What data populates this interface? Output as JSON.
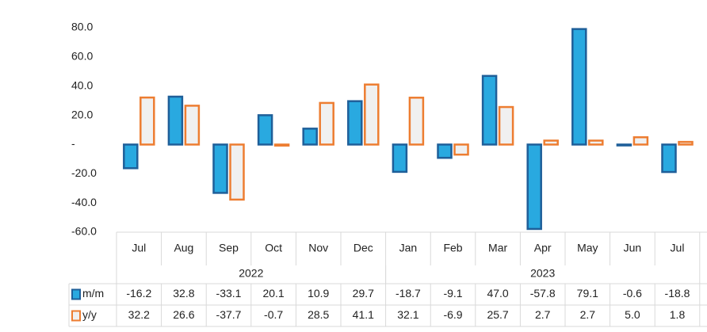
{
  "chart_data": {
    "type": "bar",
    "categories": [
      "Jul",
      "Aug",
      "Sep",
      "Oct",
      "Nov",
      "Dec",
      "Jan",
      "Feb",
      "Mar",
      "Apr",
      "May",
      "Jun",
      "Jul"
    ],
    "groups": [
      {
        "label": "2022",
        "first": 0,
        "last": 5
      },
      {
        "label": "2023",
        "first": 6,
        "last": 12
      }
    ],
    "series": [
      {
        "name": "m/m",
        "color": "#29a9e0",
        "edge": "#1f5f99",
        "values": [
          -16.2,
          32.8,
          -33.1,
          20.1,
          10.9,
          29.7,
          -18.7,
          -9.1,
          47.0,
          -57.8,
          79.1,
          -0.6,
          -18.8
        ],
        "value_labels": [
          "-16.2",
          "32.8",
          "-33.1",
          "20.1",
          "10.9",
          "29.7",
          "-18.7",
          "-9.1",
          "47.0",
          "-57.8",
          "79.1",
          "-0.6",
          "-18.8"
        ]
      },
      {
        "name": "y/y",
        "color": "#f0f0f0",
        "edge": "#ed7d31",
        "values": [
          32.2,
          26.6,
          -37.7,
          -0.7,
          28.5,
          41.1,
          32.1,
          -6.9,
          25.7,
          2.7,
          2.7,
          5.0,
          1.8
        ],
        "value_labels": [
          "32.2",
          "26.6",
          "-37.7",
          "-0.7",
          "28.5",
          "41.1",
          "32.1",
          "-6.9",
          "25.7",
          "2.7",
          "2.7",
          "5.0",
          "1.8"
        ]
      }
    ],
    "ylim": [
      -60,
      80
    ],
    "yticks": [
      {
        "value": 80,
        "label": "80.0"
      },
      {
        "value": 60,
        "label": "60.0"
      },
      {
        "value": 40,
        "label": "40.0"
      },
      {
        "value": 20,
        "label": "20.0"
      },
      {
        "value": 0,
        "label": "-"
      },
      {
        "value": -20,
        "label": "-20.0"
      },
      {
        "value": -40,
        "label": "-40.0"
      },
      {
        "value": -60,
        "label": "-60.0"
      }
    ],
    "grid": false
  }
}
